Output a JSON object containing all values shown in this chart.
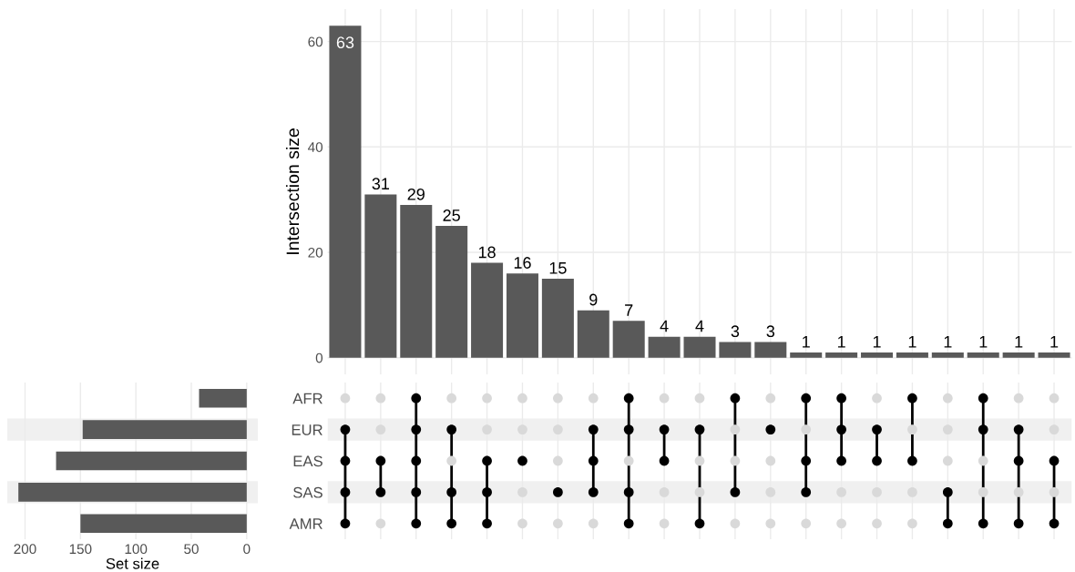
{
  "chart_data": [
    {
      "type": "bar",
      "ylabel": "Intersection size",
      "categories": [
        null,
        null,
        null,
        null,
        null,
        null,
        null,
        null,
        null,
        null,
        null,
        null,
        null,
        null,
        null,
        null,
        null,
        null,
        null,
        null,
        null
      ],
      "values": [
        63,
        31,
        29,
        25,
        18,
        16,
        15,
        9,
        7,
        4,
        4,
        3,
        3,
        1,
        1,
        1,
        1,
        1,
        1,
        1,
        1
      ],
      "color": "#595959",
      "data_labels": true,
      "ylim": [
        -3.15,
        66.15
      ],
      "yticks": [
        0,
        20,
        40,
        60
      ],
      "grid": true
    },
    {
      "type": "bar",
      "orientation": "horizontal",
      "xlabel": "Set size",
      "categories": [
        null,
        null,
        null,
        null,
        null
      ],
      "values": [
        43,
        148,
        172,
        206,
        150
      ],
      "color": "#595959",
      "xlim": [
        216,
        -10
      ],
      "xticks": [
        200,
        150,
        100,
        50,
        0
      ],
      "grid": "x",
      "tick_labels": "x"
    },
    {
      "type": "other",
      "categories": [
        null,
        null,
        null,
        null,
        null,
        null,
        null,
        null,
        null,
        null,
        null,
        null,
        null,
        null,
        null,
        null,
        null,
        null,
        null,
        null,
        null
      ],
      "y_categories": [
        "AFR",
        "EUR",
        "EAS",
        "SAS",
        "AMR"
      ],
      "colors": [
        "#d9d9d9",
        "#000000"
      ],
      "cells": [
        [
          false,
          false,
          true,
          false,
          false,
          false,
          false,
          false,
          true,
          false,
          false,
          true,
          false,
          true,
          true,
          false,
          true,
          false,
          true,
          false,
          false
        ],
        [
          true,
          false,
          true,
          true,
          false,
          false,
          false,
          true,
          true,
          true,
          true,
          false,
          true,
          false,
          true,
          true,
          false,
          false,
          true,
          true,
          false
        ],
        [
          true,
          true,
          true,
          false,
          true,
          true,
          false,
          true,
          false,
          true,
          false,
          false,
          false,
          true,
          true,
          true,
          true,
          false,
          false,
          true,
          true
        ],
        [
          true,
          true,
          true,
          true,
          true,
          false,
          true,
          true,
          true,
          false,
          false,
          true,
          false,
          true,
          false,
          false,
          false,
          true,
          false,
          false,
          false
        ],
        [
          true,
          false,
          true,
          true,
          true,
          false,
          false,
          false,
          true,
          false,
          true,
          false,
          false,
          false,
          false,
          false,
          false,
          true,
          true,
          true,
          true
        ]
      ]
    }
  ]
}
